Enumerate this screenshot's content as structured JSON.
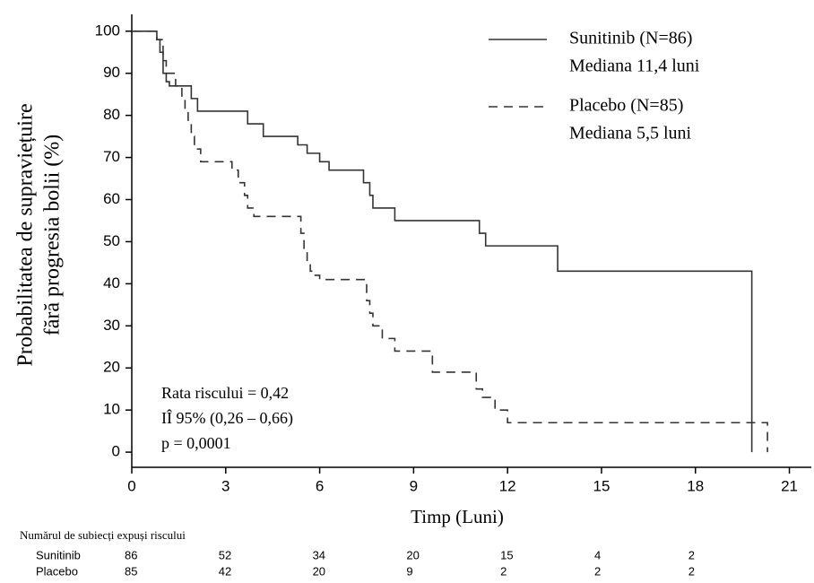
{
  "chart_data": {
    "type": "step",
    "y_label": [
      "Probabilitatea de supraviețuire",
      "fără progresia bolii (%)"
    ],
    "x_label": "Timp (Luni)",
    "xlim": [
      0,
      21.7
    ],
    "ylim": [
      -3.6,
      104
    ],
    "xticks": [
      0,
      3,
      6,
      9,
      12,
      15,
      18,
      21
    ],
    "yticks": [
      0,
      10,
      20,
      30,
      40,
      50,
      60,
      70,
      80,
      90,
      100
    ],
    "series": [
      {
        "name": "Sunitinib  (N=86)",
        "median_label": "Mediana 11,4 luni",
        "color": "#333333",
        "dash": "none",
        "x": [
          0,
          0.8,
          0.9,
          1.0,
          1.1,
          1.2,
          1.9,
          2.1,
          3.7,
          4.2,
          5.3,
          5.6,
          6.0,
          6.3,
          7.4,
          7.6,
          7.7,
          8.4,
          11.1,
          11.3,
          13.6,
          19.8
        ],
        "values": [
          100,
          98,
          95,
          90,
          88,
          87,
          84,
          81,
          78,
          75,
          73,
          71,
          69,
          67,
          64,
          61,
          58,
          55,
          52,
          49,
          43,
          0
        ]
      },
      {
        "name": "Placebo (N=85)",
        "median_label": "Mediana 5,5 luni",
        "color": "#333333",
        "dash": "10 7",
        "x": [
          0,
          0.8,
          1.0,
          1.1,
          1.4,
          1.6,
          1.7,
          1.8,
          1.9,
          2.0,
          2.2,
          3.2,
          3.4,
          3.6,
          3.7,
          3.9,
          5.4,
          5.5,
          5.6,
          5.7,
          5.8,
          6.0,
          7.5,
          7.6,
          7.7,
          8.0,
          8.4,
          9.6,
          11.0,
          11.2,
          11.6,
          12.0,
          20.3
        ],
        "values": [
          100,
          98,
          93,
          90,
          87,
          84,
          81,
          78,
          75,
          72,
          69,
          67,
          64,
          61,
          58,
          56,
          52,
          48,
          45,
          43,
          42,
          41,
          36,
          33,
          30,
          27,
          24,
          19,
          15,
          13,
          10,
          7,
          0
        ]
      }
    ],
    "annotations": [
      "Rata riscului = 0,42",
      "IÎ 95% (0,26 – 0,66)",
      "p = 0,0001"
    ],
    "risk_table": {
      "title": "Numărul de subiecți expuși riscului",
      "x": [
        0,
        3,
        6,
        9,
        12,
        15,
        18
      ],
      "rows": [
        {
          "label": "Sunitinib",
          "values": [
            86,
            52,
            34,
            20,
            15,
            4,
            2
          ]
        },
        {
          "label": "Placebo",
          "values": [
            85,
            42,
            20,
            9,
            2,
            2,
            2
          ]
        }
      ]
    }
  }
}
